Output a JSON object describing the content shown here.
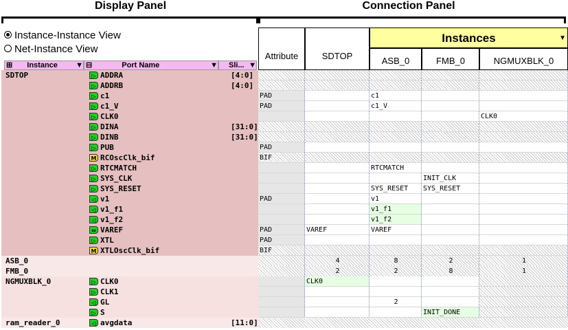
{
  "panels": {
    "display_title": "Display Panel",
    "connection_title": "Connection Panel"
  },
  "views": {
    "instance_view": "Instance-Instance View",
    "net_view": "Net-Instance View",
    "selected": "instance"
  },
  "columns": {
    "instance": "Instance",
    "port_name": "Port Name",
    "slice": "Sli..."
  },
  "conn_headers": {
    "attribute": "Attribute",
    "sdtop": "SDTOP",
    "instances": "Instances",
    "asb": "ASB_0",
    "fmb": "FMB_0",
    "ngmux": "NGMUXBLK_0"
  },
  "sdtop_instance": "SDTOP",
  "sdtop_rows": [
    {
      "port": "ADDRA",
      "slice": "[4:0]",
      "pin": "out",
      "attr": "",
      "sdtop": "",
      "asb": "",
      "fmb": "",
      "ngmux": "",
      "hatch": true
    },
    {
      "port": "ADDRB",
      "slice": "[4:0]",
      "pin": "out",
      "attr": "",
      "sdtop": "",
      "asb": "",
      "fmb": "",
      "ngmux": "",
      "hatch": true
    },
    {
      "port": "c1",
      "slice": "",
      "pin": "out",
      "attr": "PAD",
      "sdtop": "",
      "asb": "c1",
      "fmb": "",
      "ngmux": ""
    },
    {
      "port": "c1_V",
      "slice": "",
      "pin": "out",
      "attr": "PAD",
      "sdtop": "",
      "asb": "c1_V",
      "fmb": "",
      "ngmux": ""
    },
    {
      "port": "CLK0",
      "slice": "",
      "pin": "out",
      "attr": "",
      "sdtop": "",
      "asb": "",
      "fmb": "",
      "ngmux": "CLK0"
    },
    {
      "port": "DINA",
      "slice": "[31:0]",
      "pin": "out",
      "attr": "",
      "sdtop": "",
      "asb": "",
      "fmb": "",
      "ngmux": "",
      "hatch": true
    },
    {
      "port": "DINB",
      "slice": "[31:0]",
      "pin": "out",
      "attr": "",
      "sdtop": "",
      "asb": "",
      "fmb": "",
      "ngmux": "",
      "hatch": true
    },
    {
      "port": "PUB",
      "slice": "",
      "pin": "out",
      "attr": "PAD",
      "sdtop": "",
      "asb": "",
      "fmb": "",
      "ngmux": ""
    },
    {
      "port": "RCOscClk_bif",
      "slice": "",
      "pin": "M",
      "attr": "BIF",
      "sdtop": "",
      "asb": "",
      "fmb": "",
      "ngmux": "",
      "hatch": true
    },
    {
      "port": "RTCMATCH",
      "slice": "",
      "pin": "out",
      "attr": "",
      "sdtop": "",
      "asb": "RTCMATCH",
      "fmb": "",
      "ngmux": ""
    },
    {
      "port": "SYS_CLK",
      "slice": "",
      "pin": "out",
      "attr": "",
      "sdtop": "",
      "asb": "",
      "fmb": "INIT_CLK",
      "ngmux": ""
    },
    {
      "port": "SYS_RESET",
      "slice": "",
      "pin": "out",
      "attr": "",
      "sdtop": "",
      "asb": "SYS_RESET",
      "fmb": "SYS_RESET",
      "ngmux": ""
    },
    {
      "port": "v1",
      "slice": "",
      "pin": "in",
      "attr": "PAD",
      "sdtop": "",
      "asb": "v1",
      "fmb": "",
      "ngmux": ""
    },
    {
      "port": "v1_f1",
      "slice": "",
      "pin": "in",
      "attr": "",
      "sdtop": "",
      "asb": "v1_f1",
      "fmb": "",
      "ngmux": "",
      "asbGreen": true
    },
    {
      "port": "v1_f2",
      "slice": "",
      "pin": "in",
      "attr": "",
      "sdtop": "",
      "asb": "v1_f2",
      "fmb": "",
      "ngmux": "",
      "asbGreen": true
    },
    {
      "port": "VAREF",
      "slice": "",
      "pin": "bi",
      "attr": "PAD",
      "sdtop": "VAREF",
      "asb": "VAREF",
      "fmb": "",
      "ngmux": ""
    },
    {
      "port": "XTL",
      "slice": "",
      "pin": "out",
      "attr": "PAD",
      "sdtop": "",
      "asb": "",
      "fmb": "",
      "ngmux": ""
    },
    {
      "port": "XTLOscClk_bif",
      "slice": "",
      "pin": "M",
      "attr": "BIF",
      "sdtop": "",
      "asb": "",
      "fmb": "",
      "ngmux": "",
      "hatch": true
    }
  ],
  "collapsed_rows": [
    {
      "instance": "ASB_0",
      "sdtop": "4",
      "asb": "8",
      "fmb": "2",
      "ngmux": "1"
    },
    {
      "instance": "FMB_0",
      "sdtop": "2",
      "asb": "2",
      "fmb": "8",
      "ngmux": "1"
    }
  ],
  "ngmux_instance": "NGMUXBLK_0",
  "ngmux_rows": [
    {
      "port": "CLK0",
      "pin": "out",
      "sdtop": "CLK0",
      "asb": "",
      "fmb": ""
    },
    {
      "port": "CLK1",
      "pin": "out",
      "sdtop": "",
      "asb": "",
      "fmb": ""
    },
    {
      "port": "GL",
      "pin": "in",
      "sdtop": "",
      "asb": "2",
      "fmb": ""
    },
    {
      "port": "S",
      "pin": "out",
      "sdtop": "",
      "asb": "",
      "fmb": "INIT_DONE"
    }
  ],
  "ram_instance": "ram_reader_0",
  "ram_row": {
    "port": "avgdata",
    "slice": "[11:0]"
  },
  "colors": {
    "row_bg": "#e6c0c0",
    "pin_green": "#22cc22",
    "pin_yellow": "#f8e040",
    "instances_bg": "#ffffa0"
  }
}
